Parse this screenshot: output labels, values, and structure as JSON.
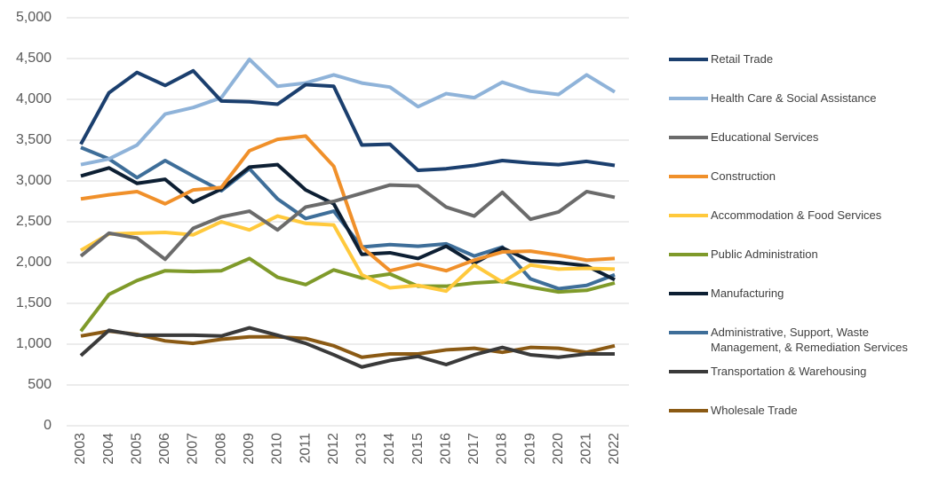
{
  "chart_data": {
    "type": "line",
    "x": [
      "2003",
      "2004",
      "2005",
      "2006",
      "2007",
      "2008",
      "2009",
      "2010",
      "2011",
      "2012",
      "2013",
      "2014",
      "2015",
      "2016",
      "2017",
      "2018",
      "2019",
      "2020",
      "2021",
      "2022"
    ],
    "ylim": [
      0,
      5000
    ],
    "yticks": [
      0,
      500,
      {
        "value": 1000,
        "label": "1,000"
      },
      {
        "value": 1500,
        "label": "1,500"
      },
      {
        "value": 2000,
        "label": "2,000"
      },
      {
        "value": 2500,
        "label": "2,500"
      },
      {
        "value": 3000,
        "label": "3,000"
      },
      {
        "value": 3500,
        "label": "3,500"
      },
      {
        "value": 4000,
        "label": "4,000"
      },
      {
        "value": 4500,
        "label": "4,500"
      },
      {
        "value": 5000,
        "label": "5,000"
      }
    ],
    "grid": true,
    "legend": "right",
    "series": [
      {
        "name": "Retail Trade",
        "color": "#1b3f6e",
        "values": [
          3450,
          4080,
          4330,
          4170,
          4350,
          3980,
          3970,
          3940,
          4180,
          4160,
          3440,
          3450,
          3130,
          3150,
          3190,
          3250,
          3220,
          3200,
          3240,
          3190
        ]
      },
      {
        "name": "Health Care & Social Assistance",
        "color": "#8fb3d9",
        "values": [
          3200,
          3270,
          3440,
          3820,
          3900,
          4020,
          4490,
          4160,
          4200,
          4300,
          4200,
          4150,
          3910,
          4070,
          4020,
          4210,
          4100,
          4060,
          4300,
          4090
        ]
      },
      {
        "name": "Educational Services",
        "color": "#6b6b6b",
        "values": [
          2080,
          2360,
          2300,
          2040,
          2420,
          2560,
          2630,
          2400,
          2680,
          2750,
          2850,
          2950,
          2940,
          2680,
          2570,
          2860,
          2530,
          2620,
          2870,
          2800
        ]
      },
      {
        "name": "Construction",
        "color": "#f0902a",
        "values": [
          2780,
          2830,
          2870,
          2720,
          2890,
          2920,
          3370,
          3510,
          3550,
          3180,
          2190,
          1900,
          1980,
          1900,
          2030,
          2130,
          2140,
          2090,
          2030,
          2050
        ]
      },
      {
        "name": "Accommodation & Food Services",
        "color": "#ffc93c",
        "values": [
          2150,
          2350,
          2360,
          2370,
          2340,
          2500,
          2400,
          2570,
          2480,
          2460,
          1850,
          1690,
          1720,
          1650,
          1970,
          1760,
          1970,
          1920,
          1930,
          1920
        ]
      },
      {
        "name": "Public Administration",
        "color": "#7f9a2a",
        "values": [
          1160,
          1610,
          1780,
          1900,
          1890,
          1900,
          2050,
          1820,
          1730,
          1910,
          1810,
          1860,
          1710,
          1710,
          1750,
          1770,
          1700,
          1640,
          1660,
          1750
        ]
      },
      {
        "name": "Manufacturing",
        "color": "#0d1f33",
        "values": [
          3060,
          3160,
          2970,
          3020,
          2740,
          2900,
          3170,
          3200,
          2890,
          2720,
          2100,
          2120,
          2050,
          2200,
          1990,
          2180,
          2020,
          2000,
          1960,
          1790
        ]
      },
      {
        "name": "Administrative, Support, Waste Management, & Remediation Services",
        "color": "#3e6e99",
        "values": [
          3410,
          3270,
          3040,
          3250,
          3060,
          2880,
          3150,
          2780,
          2540,
          2630,
          2190,
          2220,
          2200,
          2230,
          2080,
          2190,
          1800,
          1680,
          1720,
          1850
        ]
      },
      {
        "name": "Transportation & Warehousing",
        "color": "#3a3a3a",
        "values": [
          860,
          1170,
          1110,
          1110,
          1110,
          1100,
          1200,
          1110,
          1010,
          870,
          720,
          800,
          850,
          750,
          870,
          960,
          870,
          840,
          880,
          880
        ]
      },
      {
        "name": "Wholesale Trade",
        "color": "#8b5a14",
        "values": [
          1100,
          1160,
          1120,
          1040,
          1010,
          1060,
          1090,
          1090,
          1070,
          980,
          840,
          880,
          880,
          930,
          950,
          900,
          960,
          950,
          900,
          980
        ]
      }
    ]
  }
}
